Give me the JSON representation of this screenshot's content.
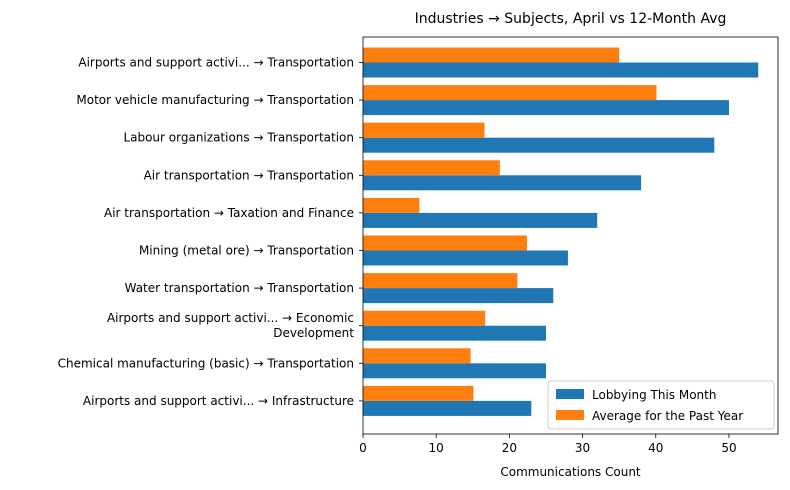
{
  "chart_data": {
    "type": "bar",
    "orientation": "horizontal",
    "title": "Industries → Subjects, April vs 12-Month Avg",
    "xlabel": "Communications Count",
    "ylabel": "",
    "xlim": [
      0,
      56.7
    ],
    "xticks": [
      0,
      10,
      20,
      30,
      40,
      50
    ],
    "categories": [
      "Airports and support activi... → Transportation",
      "Motor vehicle manufacturing → Transportation",
      "Labour organizations → Transportation",
      "Air transportation → Transportation",
      "Air transportation → Taxation and Finance",
      "Mining (metal ore) → Transportation",
      "Water transportation → Transportation",
      "Airports and support activi... → Economic\nDevelopment",
      "Chemical manufacturing (basic) → Transportation",
      "Airports and support activi... → Infrastructure"
    ],
    "series": [
      {
        "name": "Lobbying This Month",
        "color": "#1f77b4",
        "values": [
          54,
          50,
          48,
          38,
          32,
          28,
          26,
          25,
          25,
          23
        ]
      },
      {
        "name": "Average for the Past Year",
        "color": "#ff7f0e",
        "values": [
          35,
          40.1,
          16.6,
          18.7,
          7.7,
          22.4,
          21.1,
          16.7,
          14.7,
          15.1
        ]
      }
    ],
    "legend_position": "lower-right",
    "grid": false
  }
}
